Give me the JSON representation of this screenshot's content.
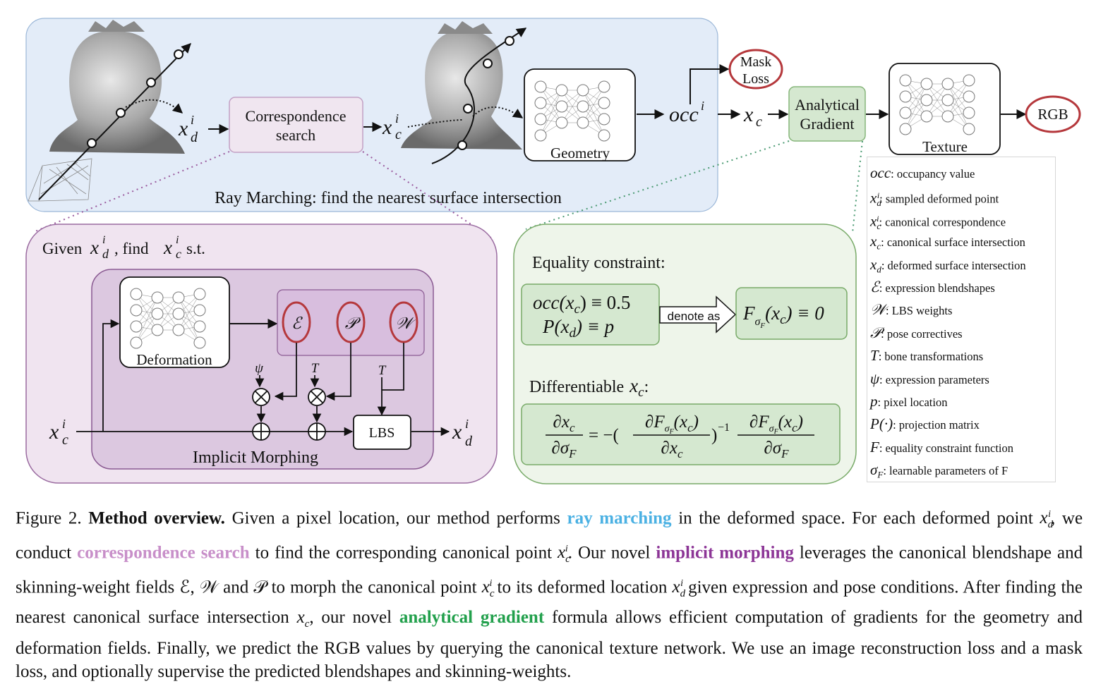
{
  "labels": {
    "correspondence_search": [
      "Correspondence",
      "search"
    ],
    "geometry": "Geometry",
    "texture": "Texture",
    "analytical_gradient": [
      "Analytical",
      "Gradient"
    ],
    "mask_loss": [
      "Mask",
      "Loss"
    ],
    "rgb": "RGB",
    "occ": "occ",
    "ray_marching_title": "Ray Marching: find the nearest surface intersection",
    "given_prefix": "Given",
    "given_find": ", find",
    "given_suffix": "s.t.",
    "deformation": "Deformation",
    "implicit_morphing": "Implicit Morphing",
    "lbs": "LBS",
    "equality_title": "Equality constraint:",
    "eq_line1": "occ(x",
    "eq_line1_tail": ") ≡ 0.5",
    "eq_line2": "P(x",
    "eq_line2_tail": ") ≡ p",
    "denote_as": "denote as",
    "f_constraint_tail": "(x",
    "f_constraint_end": ") ≡ 0",
    "differentiable_title": "Differentiable"
  },
  "legend": [
    {
      "symbol": "occ",
      "text": ": occupancy value"
    },
    {
      "symbol": "x",
      "sub": "d",
      "sup": "i",
      "text": ": sampled deformed point"
    },
    {
      "symbol": "x",
      "sub": "c",
      "sup": "i",
      "text": ": canonical correspondence"
    },
    {
      "symbol": "x",
      "sub": "c",
      "text": ": canonical surface intersection"
    },
    {
      "symbol": "x",
      "sub": "d",
      "text": ": deformed surface intersection"
    },
    {
      "symbol": "ℰ",
      "text": ": expression blendshapes"
    },
    {
      "symbol": "𝒲",
      "text": ": LBS weights"
    },
    {
      "symbol": "𝒫",
      "text": ": pose correctives"
    },
    {
      "symbol": "T",
      "text": ": bone transformations"
    },
    {
      "symbol": "ψ",
      "text": ": expression parameters"
    },
    {
      "symbol": "p",
      "text": ": pixel location"
    },
    {
      "symbol": "P(·)",
      "text": ": projection matrix"
    },
    {
      "symbol": "F",
      "text": ": equality constraint function"
    },
    {
      "symbol": "σ",
      "sub": "F",
      "text": ": learnable parameters of F"
    }
  ],
  "caption": {
    "prefix": "Figure 2.",
    "title": "Method overview.",
    "t1": "Given a pixel location, our method performs",
    "k1": "ray marching",
    "t2": "in the deformed space. For each deformed point",
    "t3": ", we conduct",
    "k2": "correspondence search",
    "t4": "to find the corresponding canonical point",
    "t5": ". Our novel",
    "k3": "implicit morphing",
    "t6": "leverages the canonical blendshape and skinning-weight fields ℰ, 𝒲 and 𝒫 to morph the canonical point",
    "t7": "to its deformed location",
    "t8": "given expression and pose conditions. After finding the nearest canonical surface intersection",
    "t9": ", our novel",
    "k4": "analytical gradient",
    "t10": "formula allows efficient computation of gradients for the geometry and deformation fields. Finally, we predict the RGB values by querying the canonical texture network. We use an image reconstruction loss and a mask loss, and optionally supervise the predicted blendshapes and skinning-weights."
  },
  "colors": {
    "ray_panel": "#e3ecf8",
    "correspondence": "#f0e6f0",
    "implicit_panel": "#f0e4f0",
    "implicit_inner": "#dcc8e0",
    "gradient_panel": "#eef5ea",
    "gradient_box": "#d5e8d0",
    "red_circle": "#b5383c"
  }
}
